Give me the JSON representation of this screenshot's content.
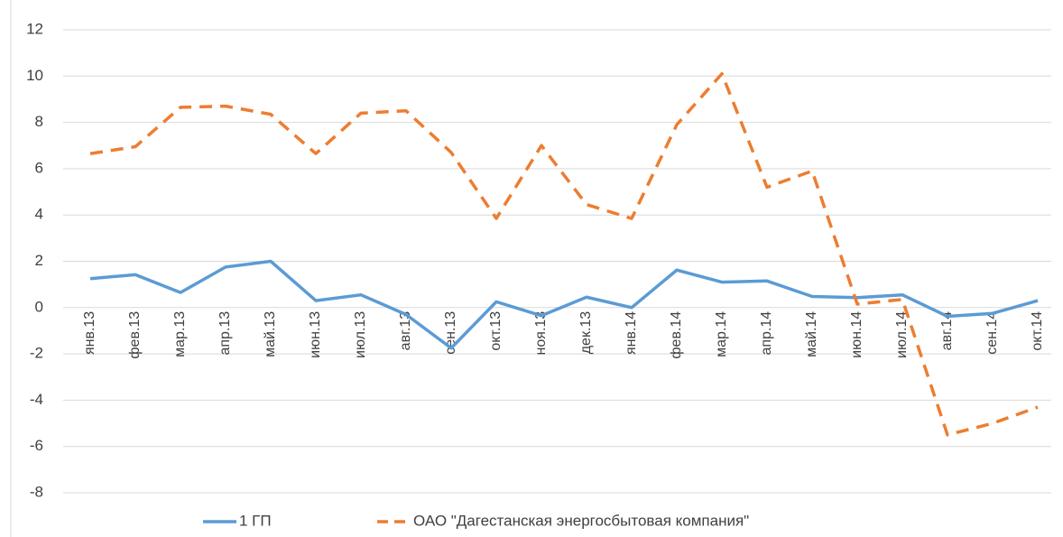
{
  "chart_data": {
    "type": "line",
    "categories": [
      "янв.13",
      "фев.13",
      "мар.13",
      "апр.13",
      "май.13",
      "июн.13",
      "июл.13",
      "авг.13",
      "сен.13",
      "окт.13",
      "ноя.13",
      "дек.13",
      "янв.14",
      "фев.14",
      "мар.14",
      "апр.14",
      "май.14",
      "июн.14",
      "июл.14",
      "авг.14",
      "сен.14",
      "окт.14"
    ],
    "series": [
      {
        "name": "1 ГП",
        "color": "#5b9bd5",
        "line_style": "solid",
        "values": [
          1.25,
          1.42,
          0.65,
          1.75,
          2.0,
          0.3,
          0.55,
          -0.3,
          -1.75,
          0.25,
          -0.35,
          0.45,
          0,
          1.62,
          1.1,
          1.15,
          0.48,
          0.43,
          0.55,
          -0.38,
          -0.25,
          0.3
        ]
      },
      {
        "name": "ОАО \"Дагестанская энергосбытовая компания\"",
        "color": "#ed7d31",
        "line_style": "dashed",
        "values": [
          6.65,
          6.95,
          8.65,
          8.7,
          8.35,
          6.65,
          8.4,
          8.5,
          6.7,
          3.85,
          7.0,
          4.45,
          3.85,
          7.9,
          10.1,
          5.2,
          5.9,
          0.15,
          0.35,
          -5.5,
          -5.0,
          -4.3
        ]
      }
    ],
    "ylim": [
      -8,
      12
    ],
    "yticks": [
      -8,
      -6,
      -4,
      -2,
      0,
      2,
      4,
      6,
      8,
      10,
      12
    ],
    "grid": true,
    "legend": "bottom"
  }
}
